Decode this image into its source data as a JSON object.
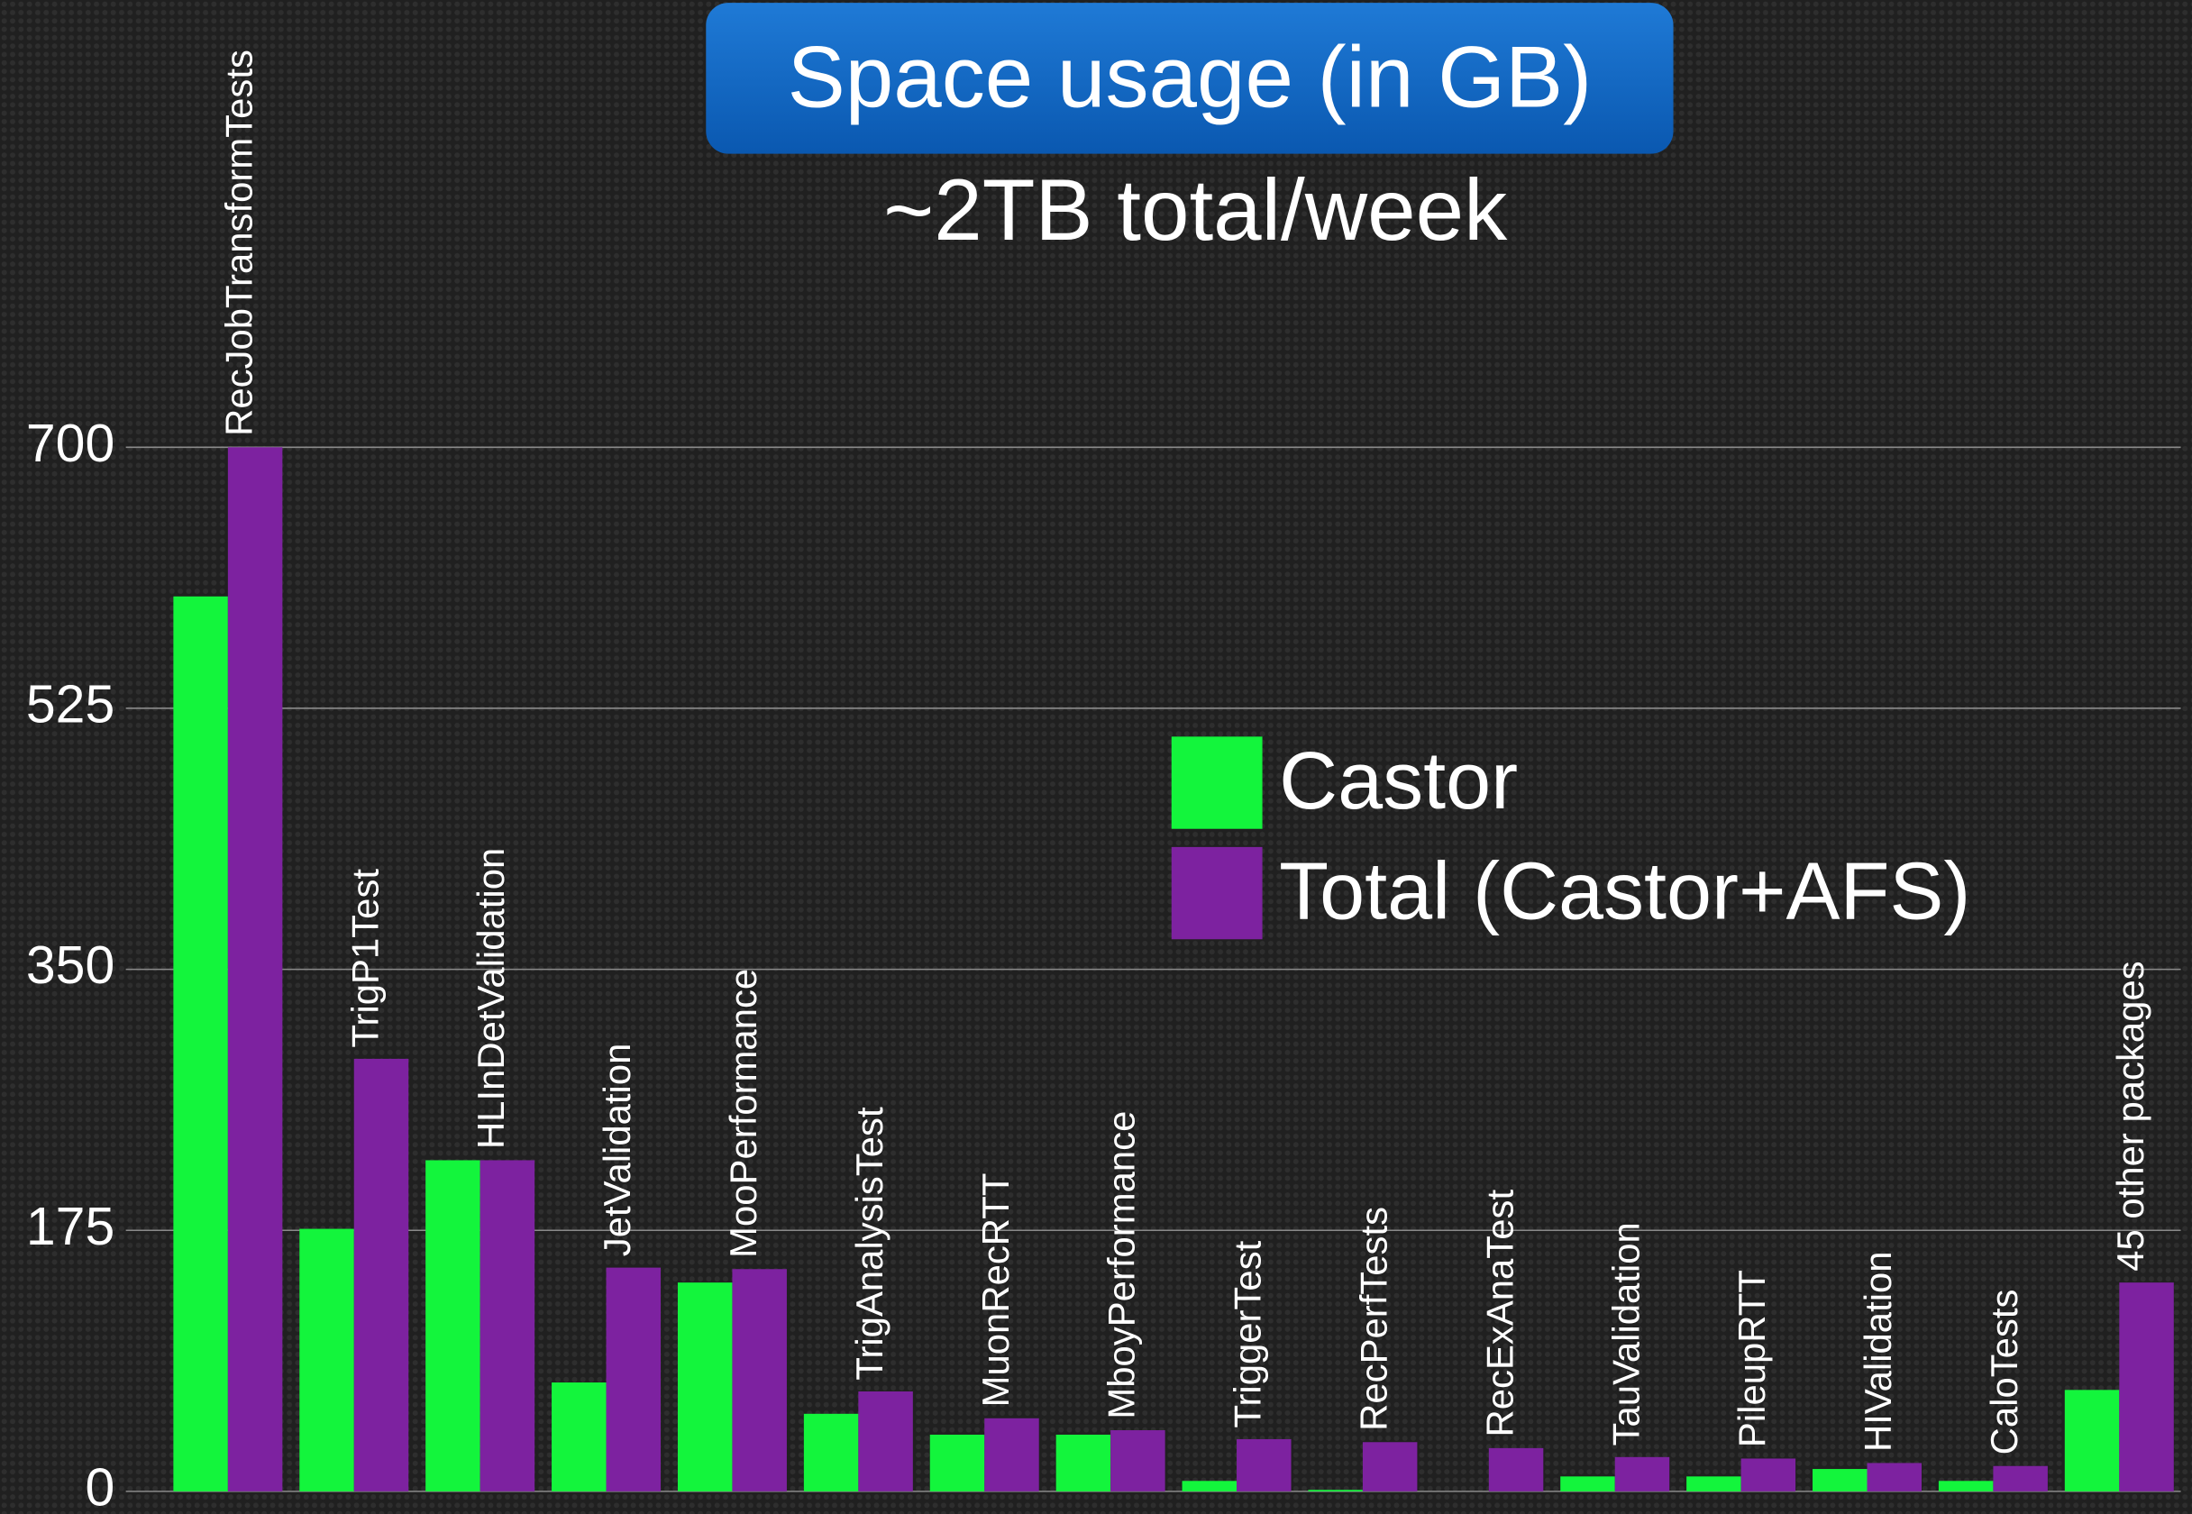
{
  "chart_data": {
    "type": "bar",
    "title": "Space usage (in GB)",
    "subtitle": "~2TB total/week",
    "categories": [
      "RecJobTransformTests",
      "TrigP1Test",
      "HLInDetValidation",
      "JetValidation",
      "MooPerformance",
      "TrigAnalysisTest",
      "MuonRecRTT",
      "MboyPerformance",
      "TriggerTest",
      "RecPerfTests",
      "RecExAnaTest",
      "TauValidation",
      "PileupRTT",
      "HIValidation",
      "CaloTests",
      "45 other packages"
    ],
    "series": [
      {
        "name": "Castor",
        "color": "#13f53c",
        "values": [
          600,
          176,
          222,
          73,
          140,
          52,
          38,
          38,
          7,
          1,
          0,
          10,
          10,
          15,
          7,
          68
        ]
      },
      {
        "name": "Total (Castor+AFS)",
        "color": "#7d22a0",
        "values": [
          700,
          290,
          222,
          150,
          149,
          67,
          49,
          41,
          35,
          33,
          29,
          23,
          22,
          19,
          17,
          140
        ]
      }
    ],
    "ylim": [
      0,
      700
    ],
    "yticks": [
      0,
      175,
      350,
      525,
      700
    ],
    "grid": true
  }
}
